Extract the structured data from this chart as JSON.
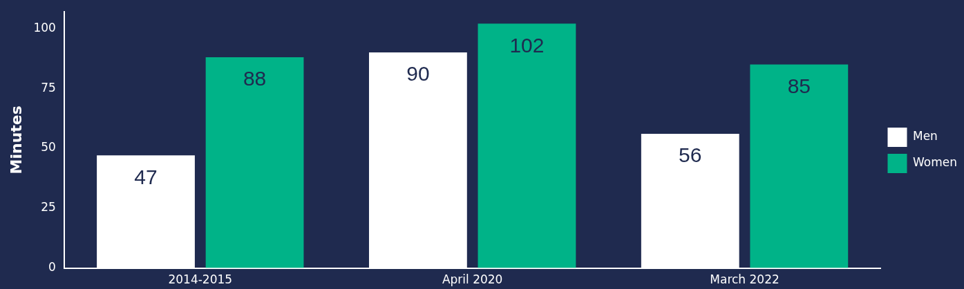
{
  "chart_data": {
    "type": "bar",
    "ylabel": "Minutes",
    "categories": [
      "2014-2015",
      "April 2020",
      "March 2022"
    ],
    "series": [
      {
        "name": "Men",
        "color": "#ffffff",
        "values": [
          47,
          90,
          56
        ]
      },
      {
        "name": "Women",
        "color": "#00b388",
        "values": [
          88,
          102,
          85
        ]
      }
    ],
    "ylim": [
      0,
      107
    ],
    "yticks": [
      0,
      25,
      50,
      75,
      100
    ],
    "grid": false,
    "legend": "right",
    "data_labels": true
  }
}
